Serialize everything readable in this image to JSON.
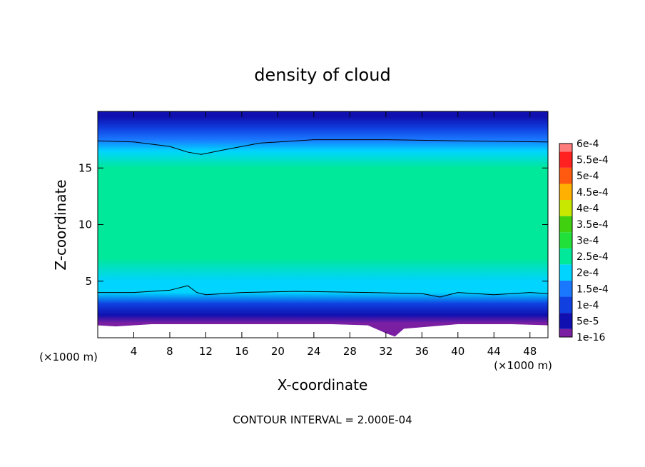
{
  "chart_data": {
    "type": "heatmap",
    "title": "density of cloud",
    "xlabel": "X-coordinate",
    "ylabel": "Z-coordinate",
    "x_unit_label": "(×1000 m)",
    "x_unit_label_right": "(×1000 m)",
    "footer": "CONTOUR INTERVAL = 2.000E-04",
    "xlim": [
      0,
      50
    ],
    "ylim": [
      0,
      20
    ],
    "x_ticks": [
      4,
      8,
      12,
      16,
      20,
      24,
      28,
      32,
      36,
      40,
      44,
      48
    ],
    "y_ticks": [
      5,
      10,
      15
    ],
    "colorbar": {
      "labels": [
        "1e-16",
        "5e-5",
        "1e-4",
        "1.5e-4",
        "2e-4",
        "2.5e-4",
        "3e-4",
        "3.5e-4",
        "4e-4",
        "4.5e-4",
        "5e-4",
        "5.5e-4",
        "6e-4"
      ],
      "colors": [
        "#7a1fa2",
        "#1010b0",
        "#1040e0",
        "#1a78ff",
        "#00d4ff",
        "#00e89a",
        "#22e03a",
        "#40d010",
        "#c8e800",
        "#ffb000",
        "#ff5a10",
        "#ff2020",
        "#ff7c7c"
      ]
    },
    "vertical_profile": [
      {
        "z": 0.5,
        "value": 0.0
      },
      {
        "z": 1.3,
        "value": 2e-05
      },
      {
        "z": 2.0,
        "value": 8e-05
      },
      {
        "z": 3.0,
        "value": 0.00013
      },
      {
        "z": 4.0,
        "value": 0.0002
      },
      {
        "z": 5.0,
        "value": 0.00024
      },
      {
        "z": 7.0,
        "value": 0.00026
      },
      {
        "z": 10.0,
        "value": 0.00029
      },
      {
        "z": 13.0,
        "value": 0.000275
      },
      {
        "z": 15.0,
        "value": 0.00026
      },
      {
        "z": 16.5,
        "value": 0.00023
      },
      {
        "z": 17.5,
        "value": 0.00019
      },
      {
        "z": 18.5,
        "value": 0.00014
      },
      {
        "z": 19.5,
        "value": 9e-05
      },
      {
        "z": 20.0,
        "value": 6e-05
      }
    ],
    "contour_2e4_upper": [
      {
        "x": 0,
        "z": 17.4
      },
      {
        "x": 4,
        "z": 17.3
      },
      {
        "x": 8,
        "z": 16.9
      },
      {
        "x": 10,
        "z": 16.4
      },
      {
        "x": 11.5,
        "z": 16.2
      },
      {
        "x": 14,
        "z": 16.6
      },
      {
        "x": 18,
        "z": 17.2
      },
      {
        "x": 24,
        "z": 17.5
      },
      {
        "x": 32,
        "z": 17.5
      },
      {
        "x": 40,
        "z": 17.4
      },
      {
        "x": 50,
        "z": 17.3
      }
    ],
    "contour_2e4_lower": [
      {
        "x": 0,
        "z": 4.0
      },
      {
        "x": 4,
        "z": 4.0
      },
      {
        "x": 8,
        "z": 4.2
      },
      {
        "x": 10,
        "z": 4.6
      },
      {
        "x": 11,
        "z": 4.0
      },
      {
        "x": 12,
        "z": 3.8
      },
      {
        "x": 16,
        "z": 4.0
      },
      {
        "x": 22,
        "z": 4.1
      },
      {
        "x": 30,
        "z": 4.0
      },
      {
        "x": 36,
        "z": 3.9
      },
      {
        "x": 38,
        "z": 3.6
      },
      {
        "x": 40,
        "z": 4.0
      },
      {
        "x": 44,
        "z": 3.8
      },
      {
        "x": 48,
        "z": 4.0
      },
      {
        "x": 50,
        "z": 3.9
      }
    ],
    "cloud_base": [
      {
        "x": 0,
        "z": 1.1
      },
      {
        "x": 2,
        "z": 1.0
      },
      {
        "x": 6,
        "z": 1.2
      },
      {
        "x": 10,
        "z": 1.2
      },
      {
        "x": 14,
        "z": 1.2
      },
      {
        "x": 20,
        "z": 1.2
      },
      {
        "x": 26,
        "z": 1.2
      },
      {
        "x": 30,
        "z": 1.1
      },
      {
        "x": 32,
        "z": 0.4
      },
      {
        "x": 33,
        "z": 0.1
      },
      {
        "x": 34,
        "z": 0.8
      },
      {
        "x": 40,
        "z": 1.2
      },
      {
        "x": 46,
        "z": 1.2
      },
      {
        "x": 50,
        "z": 1.1
      }
    ],
    "grid": false
  }
}
